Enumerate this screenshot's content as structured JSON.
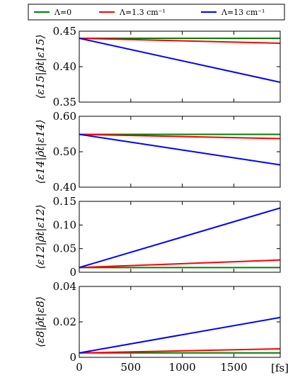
{
  "chart_data": [
    {
      "type": "line",
      "title": "",
      "xlabel": "",
      "ylabel": "⟨ε15|ρ̂t|ε15⟩",
      "xlim": [
        0,
        1950
      ],
      "ylim": [
        0.35,
        0.45
      ],
      "yticks": [
        "0.35",
        "0.40",
        "0.45"
      ],
      "xticks": [],
      "grid": false,
      "series": [
        {
          "name": "Λ=0",
          "color": "#008000",
          "x": [
            0,
            1950
          ],
          "y": [
            0.44,
            0.44
          ]
        },
        {
          "name": "Λ=1.3 cm⁻¹",
          "color": "#ff0000",
          "x": [
            0,
            1950
          ],
          "y": [
            0.44,
            0.433
          ]
        },
        {
          "name": "Λ=13 cm⁻¹",
          "color": "#0000ff",
          "x": [
            0,
            1950
          ],
          "y": [
            0.44,
            0.378
          ]
        }
      ]
    },
    {
      "type": "line",
      "title": "",
      "xlabel": "",
      "ylabel": "⟨ε14|ρ̂t|ε14⟩",
      "xlim": [
        0,
        1950
      ],
      "ylim": [
        0.4,
        0.6
      ],
      "yticks": [
        "0.40",
        "0.50",
        "0.60"
      ],
      "xticks": [],
      "grid": false,
      "series": [
        {
          "name": "Λ=0",
          "color": "#008000",
          "x": [
            0,
            1950
          ],
          "y": [
            0.549,
            0.549
          ]
        },
        {
          "name": "Λ=1.3 cm⁻¹",
          "color": "#ff0000",
          "x": [
            0,
            1950
          ],
          "y": [
            0.549,
            0.537
          ]
        },
        {
          "name": "Λ=13 cm⁻¹",
          "color": "#0000ff",
          "x": [
            0,
            1950
          ],
          "y": [
            0.549,
            0.463
          ]
        }
      ]
    },
    {
      "type": "line",
      "title": "",
      "xlabel": "",
      "ylabel": "⟨ε12|ρ̂t|ε12⟩",
      "xlim": [
        0,
        1950
      ],
      "ylim": [
        0,
        0.15
      ],
      "yticks": [
        "0",
        "0.05",
        "0.10",
        "0.15"
      ],
      "xticks": [],
      "grid": false,
      "series": [
        {
          "name": "Λ=0",
          "color": "#008000",
          "x": [
            0,
            1950
          ],
          "y": [
            0.01,
            0.01
          ]
        },
        {
          "name": "Λ=1.3 cm⁻¹",
          "color": "#ff0000",
          "x": [
            0,
            1950
          ],
          "y": [
            0.01,
            0.026
          ]
        },
        {
          "name": "Λ=13 cm⁻¹",
          "color": "#0000ff",
          "x": [
            0,
            1950
          ],
          "y": [
            0.01,
            0.136
          ]
        }
      ]
    },
    {
      "type": "line",
      "title": "",
      "xlabel": "[fs]",
      "ylabel": "⟨ε8|ρ̂t|ε8⟩",
      "xlim": [
        0,
        1950
      ],
      "ylim": [
        0,
        0.04
      ],
      "yticks": [
        "0",
        "0.02",
        "0.04"
      ],
      "xticks": [
        "0",
        "500",
        "1000",
        "1500"
      ],
      "grid": false,
      "series": [
        {
          "name": "Λ=0",
          "color": "#008000",
          "x": [
            0,
            1950
          ],
          "y": [
            0.0025,
            0.0025
          ]
        },
        {
          "name": "Λ=1.3 cm⁻¹",
          "color": "#ff0000",
          "x": [
            0,
            1950
          ],
          "y": [
            0.0025,
            0.0048
          ]
        },
        {
          "name": "Λ=13 cm⁻¹",
          "color": "#0000ff",
          "x": [
            0,
            1950
          ],
          "y": [
            0.0025,
            0.0225
          ]
        }
      ]
    }
  ],
  "legend": {
    "placement": "top",
    "entries": [
      {
        "label": "Λ=0",
        "color": "#008000"
      },
      {
        "label": "Λ=1.3 cm⁻¹",
        "color": "#ff0000"
      },
      {
        "label": "Λ=13 cm⁻¹",
        "color": "#0000ff"
      }
    ]
  }
}
